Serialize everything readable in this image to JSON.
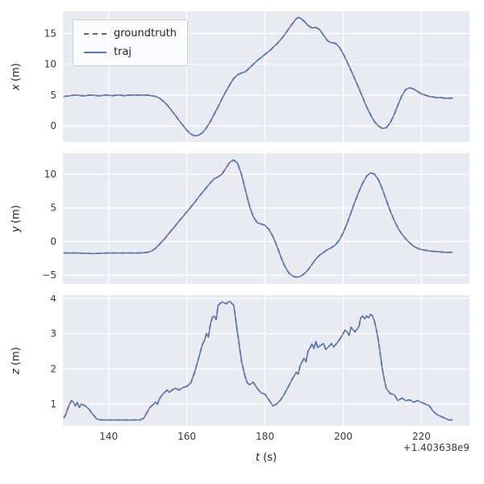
{
  "colors": {
    "axes_background": "#eaeaf2",
    "grid": "#ffffff",
    "traj_line": "#5878b0",
    "groundtruth_line": "#666666",
    "tick_text": "#3a3a3a"
  },
  "legend": {
    "items": [
      {
        "label": "groundtruth",
        "style": "dashed"
      },
      {
        "label": "traj",
        "style": "solid"
      }
    ]
  },
  "xaxis": {
    "label_var": "t",
    "label_unit": "(s)",
    "offset_text": "+1.403638e9",
    "ticks": [
      140,
      160,
      180,
      200,
      220
    ],
    "lim": [
      128.3,
      232.3
    ]
  },
  "chart_data": [
    {
      "type": "line",
      "ylabel_var": "x",
      "ylabel_unit": "(m)",
      "yticks": [
        0,
        5,
        10,
        15
      ],
      "ylim": [
        -2.6,
        18.6
      ],
      "series": [
        {
          "name": "groundtruth",
          "style": "dashed"
        },
        {
          "name": "traj",
          "style": "solid",
          "note": "overlaps groundtruth"
        }
      ],
      "points": [
        [
          128.5,
          4.8
        ],
        [
          130,
          4.9
        ],
        [
          131,
          5.0
        ],
        [
          132,
          5.0
        ],
        [
          133,
          4.9
        ],
        [
          134,
          4.9
        ],
        [
          135,
          5.0
        ],
        [
          136,
          5.0
        ],
        [
          137,
          4.9
        ],
        [
          138,
          4.9
        ],
        [
          139,
          5.0
        ],
        [
          140,
          5.0
        ],
        [
          141,
          4.9
        ],
        [
          142,
          5.0
        ],
        [
          143,
          5.0
        ],
        [
          144,
          4.9
        ],
        [
          145,
          5.0
        ],
        [
          146,
          5.0
        ],
        [
          147,
          5.0
        ],
        [
          148,
          5.0
        ],
        [
          149,
          5.0
        ],
        [
          150,
          5.0
        ],
        [
          151,
          4.9
        ],
        [
          152,
          4.8
        ],
        [
          153,
          4.5
        ],
        [
          154,
          4.0
        ],
        [
          155,
          3.4
        ],
        [
          156,
          2.6
        ],
        [
          157,
          1.8
        ],
        [
          158,
          0.9
        ],
        [
          159,
          0.1
        ],
        [
          160,
          -0.7
        ],
        [
          161,
          -1.3
        ],
        [
          162,
          -1.6
        ],
        [
          163,
          -1.5
        ],
        [
          164,
          -1.1
        ],
        [
          165,
          -0.3
        ],
        [
          166,
          0.7
        ],
        [
          167,
          1.9
        ],
        [
          168,
          3.1
        ],
        [
          169,
          4.4
        ],
        [
          170,
          5.6
        ],
        [
          171,
          6.7
        ],
        [
          172,
          7.7
        ],
        [
          173,
          8.3
        ],
        [
          174,
          8.6
        ],
        [
          175,
          8.8
        ],
        [
          176,
          9.4
        ],
        [
          177,
          10.0
        ],
        [
          178,
          10.6
        ],
        [
          179,
          11.1
        ],
        [
          180,
          11.6
        ],
        [
          181,
          12.1
        ],
        [
          182,
          12.7
        ],
        [
          183,
          13.3
        ],
        [
          184,
          14.0
        ],
        [
          185,
          14.8
        ],
        [
          186,
          15.7
        ],
        [
          187,
          16.6
        ],
        [
          188,
          17.4
        ],
        [
          188.5,
          17.6
        ],
        [
          189,
          17.5
        ],
        [
          190,
          17.0
        ],
        [
          191,
          16.3
        ],
        [
          192,
          15.9
        ],
        [
          193,
          16.0
        ],
        [
          194,
          15.6
        ],
        [
          195,
          14.7
        ],
        [
          196,
          13.8
        ],
        [
          197,
          13.5
        ],
        [
          198,
          13.4
        ],
        [
          199,
          12.8
        ],
        [
          200,
          11.7
        ],
        [
          201,
          10.4
        ],
        [
          202,
          9.0
        ],
        [
          203,
          7.6
        ],
        [
          204,
          6.1
        ],
        [
          205,
          4.6
        ],
        [
          206,
          3.1
        ],
        [
          207,
          1.8
        ],
        [
          208,
          0.7
        ],
        [
          209,
          0.0
        ],
        [
          210,
          -0.4
        ],
        [
          211,
          -0.3
        ],
        [
          212,
          0.5
        ],
        [
          213,
          1.8
        ],
        [
          214,
          3.4
        ],
        [
          215,
          4.9
        ],
        [
          216,
          5.9
        ],
        [
          217,
          6.2
        ],
        [
          218,
          6.0
        ],
        [
          219,
          5.6
        ],
        [
          220,
          5.2
        ],
        [
          221,
          5.0
        ],
        [
          222,
          4.8
        ],
        [
          223,
          4.7
        ],
        [
          224,
          4.6
        ],
        [
          225,
          4.6
        ],
        [
          226,
          4.5
        ],
        [
          227,
          4.5
        ],
        [
          228,
          4.5
        ]
      ]
    },
    {
      "type": "line",
      "ylabel_var": "y",
      "ylabel_unit": "(m)",
      "yticks": [
        -5,
        0,
        5,
        10
      ],
      "ylim": [
        -6.3,
        13.1
      ],
      "series": [
        {
          "name": "groundtruth",
          "style": "dashed"
        },
        {
          "name": "traj",
          "style": "solid",
          "note": "overlaps groundtruth"
        }
      ],
      "points": [
        [
          128.5,
          -1.7
        ],
        [
          132,
          -1.7
        ],
        [
          136,
          -1.8
        ],
        [
          140,
          -1.7
        ],
        [
          144,
          -1.7
        ],
        [
          148,
          -1.7
        ],
        [
          150,
          -1.6
        ],
        [
          151,
          -1.4
        ],
        [
          152,
          -1.0
        ],
        [
          153,
          -0.4
        ],
        [
          154,
          0.2
        ],
        [
          155,
          0.9
        ],
        [
          156,
          1.6
        ],
        [
          157,
          2.3
        ],
        [
          158,
          3.0
        ],
        [
          159,
          3.7
        ],
        [
          160,
          4.4
        ],
        [
          161,
          5.1
        ],
        [
          162,
          5.8
        ],
        [
          163,
          6.6
        ],
        [
          164,
          7.3
        ],
        [
          165,
          8.0
        ],
        [
          166,
          8.7
        ],
        [
          167,
          9.3
        ],
        [
          168,
          9.6
        ],
        [
          169,
          10.0
        ],
        [
          170,
          10.9
        ],
        [
          171,
          11.8
        ],
        [
          172,
          12.1
        ],
        [
          173,
          11.6
        ],
        [
          174,
          9.9
        ],
        [
          175,
          7.6
        ],
        [
          176,
          5.3
        ],
        [
          177,
          3.7
        ],
        [
          178,
          2.8
        ],
        [
          179,
          2.6
        ],
        [
          180,
          2.4
        ],
        [
          181,
          1.8
        ],
        [
          182,
          0.8
        ],
        [
          183,
          -0.6
        ],
        [
          184,
          -2.2
        ],
        [
          185,
          -3.6
        ],
        [
          186,
          -4.6
        ],
        [
          187,
          -5.1
        ],
        [
          188,
          -5.3
        ],
        [
          189,
          -5.2
        ],
        [
          190,
          -4.8
        ],
        [
          191,
          -4.2
        ],
        [
          192,
          -3.4
        ],
        [
          193,
          -2.6
        ],
        [
          194,
          -2.0
        ],
        [
          195,
          -1.6
        ],
        [
          196,
          -1.2
        ],
        [
          197,
          -0.9
        ],
        [
          198,
          -0.5
        ],
        [
          199,
          0.2
        ],
        [
          200,
          1.3
        ],
        [
          201,
          2.7
        ],
        [
          202,
          4.3
        ],
        [
          203,
          5.9
        ],
        [
          204,
          7.4
        ],
        [
          205,
          8.7
        ],
        [
          206,
          9.7
        ],
        [
          207,
          10.2
        ],
        [
          208,
          10.0
        ],
        [
          209,
          9.2
        ],
        [
          210,
          7.8
        ],
        [
          211,
          6.2
        ],
        [
          212,
          4.6
        ],
        [
          213,
          3.2
        ],
        [
          214,
          2.0
        ],
        [
          215,
          1.1
        ],
        [
          216,
          0.4
        ],
        [
          217,
          -0.2
        ],
        [
          218,
          -0.7
        ],
        [
          219,
          -1.0
        ],
        [
          220,
          -1.2
        ],
        [
          222,
          -1.4
        ],
        [
          224,
          -1.5
        ],
        [
          226,
          -1.6
        ],
        [
          228,
          -1.6
        ]
      ]
    },
    {
      "type": "line",
      "ylabel_var": "z",
      "ylabel_unit": "(m)",
      "yticks": [
        1,
        2,
        3,
        4
      ],
      "ylim": [
        0.38,
        4.09
      ],
      "series": [
        {
          "name": "groundtruth",
          "style": "dashed"
        },
        {
          "name": "traj",
          "style": "solid",
          "note": "overlaps groundtruth"
        }
      ],
      "points": [
        [
          128.5,
          0.6
        ],
        [
          129,
          0.7
        ],
        [
          130,
          1.0
        ],
        [
          130.5,
          1.1
        ],
        [
          131,
          1.05
        ],
        [
          131.5,
          0.95
        ],
        [
          132,
          1.05
        ],
        [
          132.5,
          0.9
        ],
        [
          133,
          1.0
        ],
        [
          134,
          0.95
        ],
        [
          135,
          0.85
        ],
        [
          136,
          0.7
        ],
        [
          137,
          0.57
        ],
        [
          138,
          0.55
        ],
        [
          140,
          0.55
        ],
        [
          142,
          0.55
        ],
        [
          144,
          0.55
        ],
        [
          146,
          0.55
        ],
        [
          148,
          0.55
        ],
        [
          149,
          0.6
        ],
        [
          150,
          0.8
        ],
        [
          150.5,
          0.9
        ],
        [
          151,
          0.95
        ],
        [
          152,
          1.05
        ],
        [
          152.5,
          1.0
        ],
        [
          153,
          1.15
        ],
        [
          154,
          1.3
        ],
        [
          155,
          1.4
        ],
        [
          155.5,
          1.33
        ],
        [
          156,
          1.38
        ],
        [
          157,
          1.45
        ],
        [
          158,
          1.4
        ],
        [
          159,
          1.47
        ],
        [
          160,
          1.5
        ],
        [
          161,
          1.6
        ],
        [
          162,
          1.9
        ],
        [
          163,
          2.3
        ],
        [
          164,
          2.7
        ],
        [
          164.5,
          2.8
        ],
        [
          165,
          3.0
        ],
        [
          165.5,
          2.9
        ],
        [
          166,
          3.25
        ],
        [
          166.5,
          3.45
        ],
        [
          167,
          3.5
        ],
        [
          167.5,
          3.4
        ],
        [
          168,
          3.8
        ],
        [
          169,
          3.9
        ],
        [
          170,
          3.85
        ],
        [
          171,
          3.92
        ],
        [
          172,
          3.8
        ],
        [
          172.5,
          3.4
        ],
        [
          173,
          3.0
        ],
        [
          174,
          2.2
        ],
        [
          175,
          1.75
        ],
        [
          175.5,
          1.6
        ],
        [
          176,
          1.55
        ],
        [
          177,
          1.62
        ],
        [
          178,
          1.45
        ],
        [
          179,
          1.32
        ],
        [
          180,
          1.28
        ],
        [
          181,
          1.12
        ],
        [
          182,
          0.95
        ],
        [
          183,
          1.0
        ],
        [
          184,
          1.12
        ],
        [
          185,
          1.3
        ],
        [
          186,
          1.5
        ],
        [
          187,
          1.72
        ],
        [
          188,
          1.9
        ],
        [
          188.5,
          1.85
        ],
        [
          189,
          2.1
        ],
        [
          190,
          2.3
        ],
        [
          190.5,
          2.2
        ],
        [
          191,
          2.5
        ],
        [
          192,
          2.7
        ],
        [
          192.5,
          2.58
        ],
        [
          193,
          2.78
        ],
        [
          193.5,
          2.6
        ],
        [
          194,
          2.65
        ],
        [
          195,
          2.72
        ],
        [
          195.5,
          2.55
        ],
        [
          196,
          2.6
        ],
        [
          197,
          2.72
        ],
        [
          197.5,
          2.62
        ],
        [
          198,
          2.68
        ],
        [
          199,
          2.82
        ],
        [
          200,
          3.0
        ],
        [
          200.5,
          3.1
        ],
        [
          201,
          3.05
        ],
        [
          201.5,
          2.95
        ],
        [
          202,
          3.18
        ],
        [
          203,
          3.05
        ],
        [
          204,
          3.2
        ],
        [
          204.5,
          3.45
        ],
        [
          205,
          3.5
        ],
        [
          205.5,
          3.42
        ],
        [
          206,
          3.5
        ],
        [
          206.5,
          3.45
        ],
        [
          207,
          3.55
        ],
        [
          207.5,
          3.5
        ],
        [
          208,
          3.35
        ],
        [
          208.5,
          3.1
        ],
        [
          209,
          2.8
        ],
        [
          209.5,
          2.4
        ],
        [
          210,
          2.0
        ],
        [
          210.5,
          1.7
        ],
        [
          211,
          1.45
        ],
        [
          212,
          1.3
        ],
        [
          213,
          1.27
        ],
        [
          214,
          1.1
        ],
        [
          215,
          1.17
        ],
        [
          216,
          1.1
        ],
        [
          217,
          1.12
        ],
        [
          218,
          1.05
        ],
        [
          219,
          1.1
        ],
        [
          220,
          1.05
        ],
        [
          221,
          1.0
        ],
        [
          222,
          0.95
        ],
        [
          223,
          0.8
        ],
        [
          224,
          0.7
        ],
        [
          225,
          0.65
        ],
        [
          226,
          0.6
        ],
        [
          227,
          0.55
        ],
        [
          228,
          0.55
        ]
      ]
    }
  ]
}
